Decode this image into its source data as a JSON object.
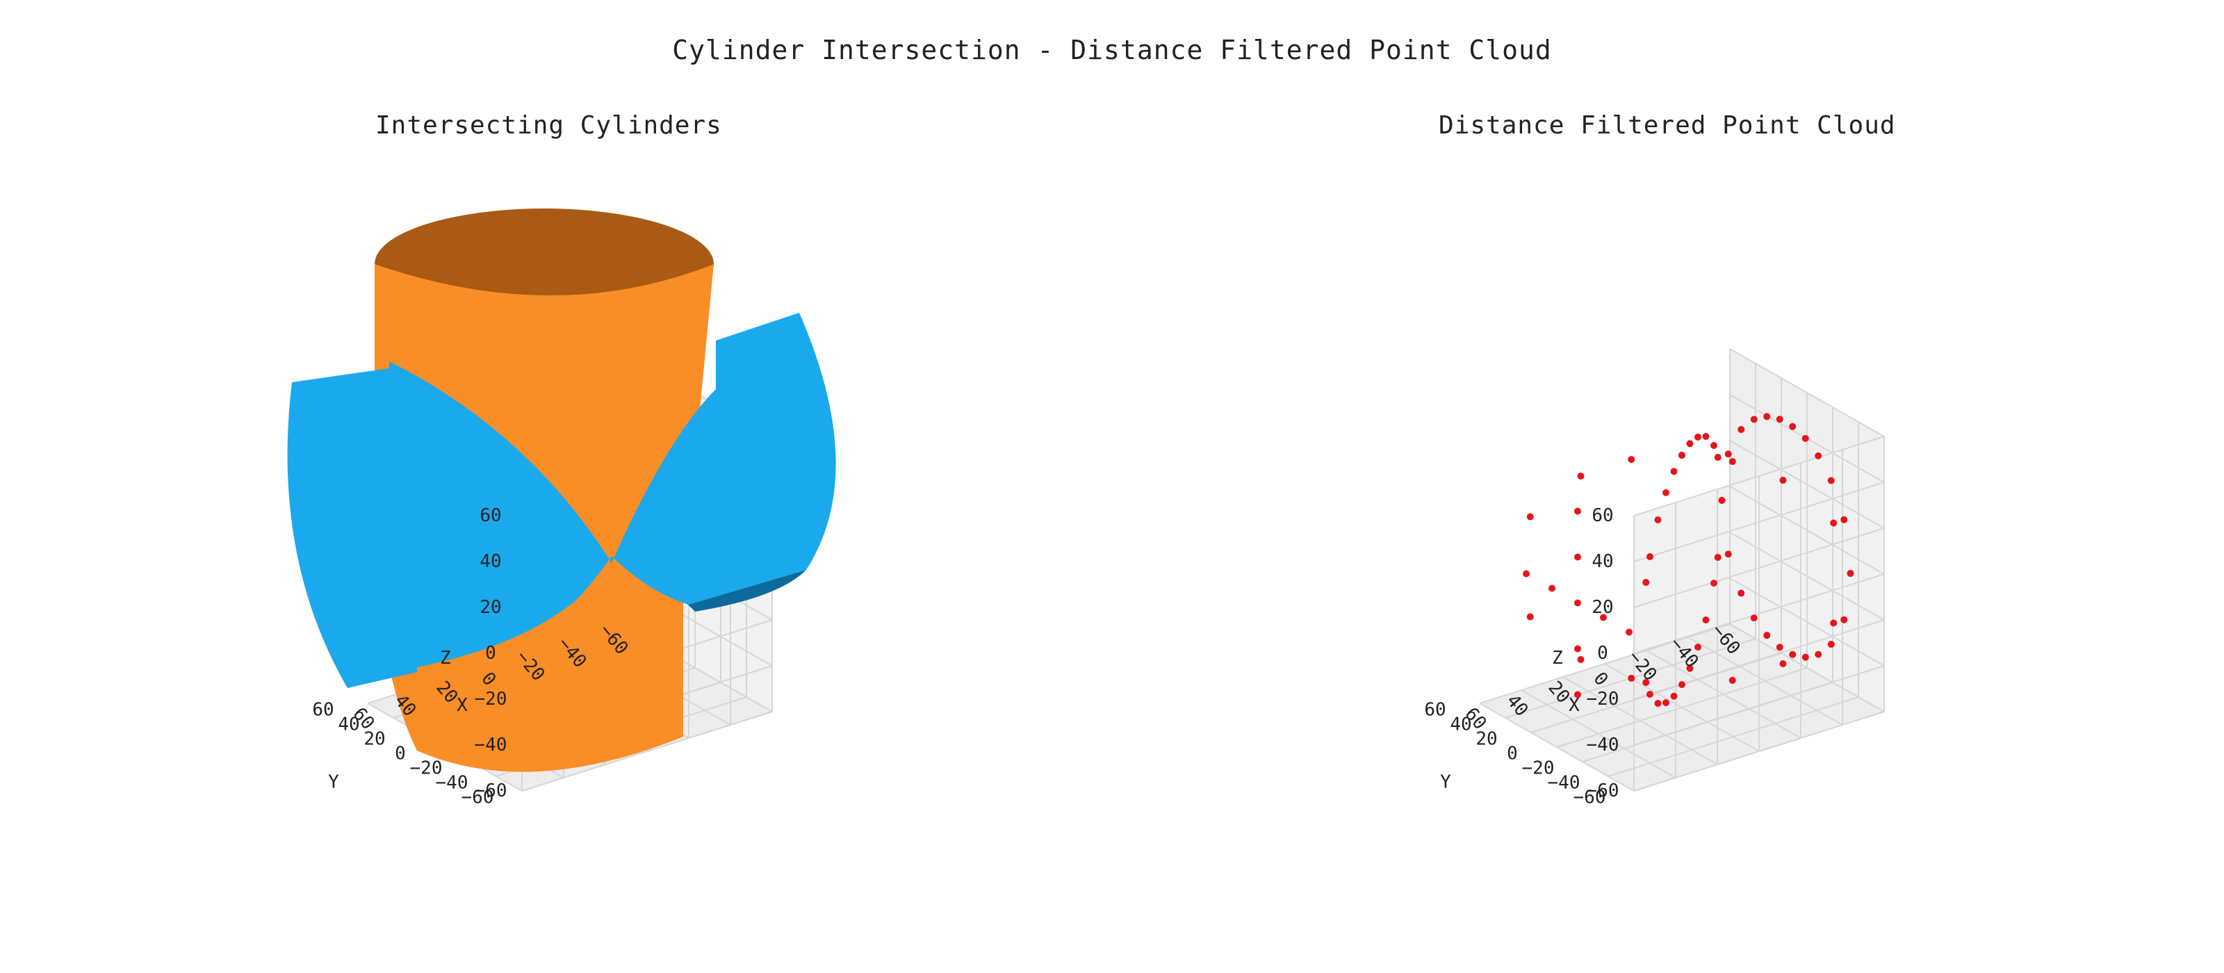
{
  "title": "Cylinder Intersection - Distance Filtered Point Cloud",
  "chart_data": [
    {
      "type": "surface3d",
      "title": "Intersecting Cylinders",
      "xlabel": "X",
      "ylabel": "Y",
      "zlabel": "Z",
      "xlim": [
        -60,
        60
      ],
      "ylim": [
        -60,
        60
      ],
      "zlim": [
        -60,
        60
      ],
      "x_ticks": [
        "60",
        "40",
        "20",
        "0",
        "−20",
        "−40",
        "−60"
      ],
      "y_ticks": [
        "60",
        "40",
        "20",
        "0",
        "−20",
        "−40",
        "−60"
      ],
      "z_ticks": [
        "60",
        "40",
        "20",
        "0",
        "−20",
        "−40",
        "−60"
      ],
      "grid": true,
      "surfaces": [
        {
          "axis": "z",
          "radius": 50,
          "extent": [
            -60,
            60
          ],
          "color": "#f98d26"
        },
        {
          "axis": "x",
          "radius": 50,
          "extent": [
            -60,
            60
          ],
          "color": "#1aa9ec"
        }
      ]
    },
    {
      "type": "scatter3d",
      "title": "Distance Filtered Point Cloud",
      "xlabel": "X",
      "ylabel": "Y",
      "zlabel": "Z",
      "xlim": [
        -60,
        60
      ],
      "ylim": [
        -60,
        60
      ],
      "zlim": [
        -60,
        60
      ],
      "x_ticks": [
        "60",
        "40",
        "20",
        "0",
        "−20",
        "−40",
        "−60"
      ],
      "y_ticks": [
        "60",
        "40",
        "20",
        "0",
        "−20",
        "−40",
        "−60"
      ],
      "z_ticks": [
        "60",
        "40",
        "20",
        "0",
        "−20",
        "−40",
        "−60"
      ],
      "grid": true,
      "marker_color": "#e8141c",
      "points": [
        [
          -50,
          50,
          0
        ],
        [
          -50,
          45,
          21.8
        ],
        [
          -50,
          35,
          35.7
        ],
        [
          -50,
          25,
          43.3
        ],
        [
          -50,
          15,
          47.7
        ],
        [
          -50,
          5,
          49.7
        ],
        [
          -50,
          -5,
          49.7
        ],
        [
          -50,
          -15,
          47.7
        ],
        [
          -50,
          -25,
          43.3
        ],
        [
          -50,
          -35,
          35.7
        ],
        [
          -50,
          -45,
          21.8
        ],
        [
          -50,
          -50,
          0
        ],
        [
          -50,
          50,
          0
        ],
        [
          -50,
          45,
          -21.8
        ],
        [
          -50,
          35,
          -35.7
        ],
        [
          -50,
          25,
          -43.3
        ],
        [
          -50,
          15,
          -47.7
        ],
        [
          -50,
          5,
          -49.7
        ],
        [
          -50,
          -5,
          -49.7
        ],
        [
          -50,
          -15,
          -47.7
        ],
        [
          -50,
          -25,
          -43.3
        ],
        [
          -50,
          -35,
          -35.7
        ],
        [
          -50,
          -45,
          -21.8
        ],
        [
          -50,
          -50,
          0
        ],
        [
          -45,
          45,
          21.8
        ],
        [
          -40,
          40,
          30
        ],
        [
          -30,
          30,
          40
        ],
        [
          -20,
          20,
          45.8
        ],
        [
          -10,
          10,
          49
        ],
        [
          0,
          0,
          50
        ],
        [
          10,
          -10,
          49
        ],
        [
          20,
          -20,
          45.8
        ],
        [
          30,
          -30,
          40
        ],
        [
          40,
          -40,
          30
        ],
        [
          45,
          -45,
          21.8
        ],
        [
          -45,
          45,
          -21.8
        ],
        [
          -40,
          40,
          -30
        ],
        [
          -30,
          30,
          -40
        ],
        [
          -20,
          20,
          -45.8
        ],
        [
          -10,
          10,
          -49
        ],
        [
          0,
          0,
          -50
        ],
        [
          10,
          -10,
          -49
        ],
        [
          20,
          -20,
          -45.8
        ],
        [
          30,
          -30,
          -40
        ],
        [
          40,
          -40,
          -30
        ],
        [
          45,
          -45,
          -21.8
        ],
        [
          -45,
          -45,
          21.8
        ],
        [
          -30,
          -30,
          40
        ],
        [
          -15,
          -15,
          47.7
        ],
        [
          0,
          0,
          50
        ],
        [
          15,
          15,
          47.7
        ],
        [
          30,
          30,
          40
        ],
        [
          45,
          45,
          21.8
        ],
        [
          -45,
          -45,
          -21.8
        ],
        [
          -30,
          -30,
          -40
        ],
        [
          -15,
          -15,
          -47.7
        ],
        [
          15,
          15,
          -47.7
        ],
        [
          30,
          30,
          -40
        ],
        [
          45,
          45,
          -21.8
        ],
        [
          50,
          0,
          0
        ],
        [
          50,
          20,
          0
        ],
        [
          50,
          40,
          0
        ],
        [
          50,
          -20,
          0
        ],
        [
          50,
          -40,
          0
        ],
        [
          50,
          0,
          20
        ],
        [
          50,
          0,
          40
        ],
        [
          50,
          0,
          -20
        ],
        [
          50,
          0,
          -40
        ]
      ]
    }
  ]
}
